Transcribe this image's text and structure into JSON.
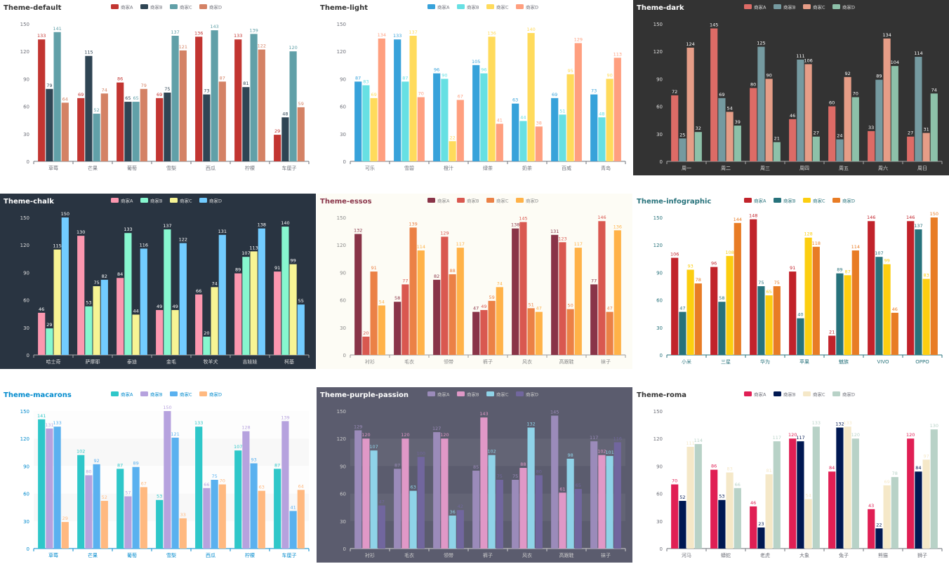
{
  "chart_data": [
    {
      "type": "bar",
      "title": "Theme-default",
      "background": "#ffffff",
      "title_color": "#333333",
      "axis_color": "#6e7079",
      "text_color": "#6e7079",
      "colors": [
        "#c23531",
        "#2f4554",
        "#61a0a8",
        "#d48265"
      ],
      "label_mode": "series",
      "categories": [
        "草莓",
        "芒果",
        "葡萄",
        "雪梨",
        "西瓜",
        "柠檬",
        "车厘子"
      ],
      "yticks": [
        "0",
        "30",
        "60",
        "90",
        "120",
        "150"
      ],
      "ylim": [
        0,
        150
      ],
      "series": [
        {
          "name": "商家A",
          "values": [
            133,
            69,
            86,
            69,
            136,
            133,
            29
          ]
        },
        {
          "name": "商家B",
          "values": [
            79,
            115,
            65,
            75,
            73,
            81,
            48
          ]
        },
        {
          "name": "商家C",
          "values": [
            141,
            52,
            65,
            137,
            143,
            139,
            120
          ]
        },
        {
          "name": "商家D",
          "values": [
            64,
            74,
            79,
            121,
            87,
            122,
            59
          ]
        }
      ]
    },
    {
      "type": "bar",
      "title": "Theme-light",
      "background": "#ffffff",
      "title_color": "#333333",
      "axis_color": "#6e7079",
      "text_color": "#6e7079",
      "colors": [
        "#37a2da",
        "#67e0e3",
        "#ffdb5c",
        "#ff9f7f"
      ],
      "label_mode": "series",
      "categories": [
        "可乐",
        "雪碧",
        "橙汁",
        "绿茶",
        "奶茶",
        "百威",
        "青岛"
      ],
      "yticks": [
        "0",
        "30",
        "60",
        "90",
        "120",
        "150"
      ],
      "ylim": [
        0,
        150
      ],
      "series": [
        {
          "name": "商家A",
          "values": [
            87,
            133,
            96,
            105,
            63,
            69,
            73
          ]
        },
        {
          "name": "商家B",
          "values": [
            83,
            87,
            90,
            96,
            44,
            51,
            48
          ]
        },
        {
          "name": "商家C",
          "values": [
            69,
            137,
            22,
            136,
            140,
            95,
            90
          ]
        },
        {
          "name": "商家D",
          "values": [
            134,
            70,
            67,
            41,
            38,
            129,
            113
          ]
        }
      ]
    },
    {
      "type": "bar",
      "title": "Theme-dark",
      "background": "#333333",
      "title_color": "#ffffff",
      "axis_color": "#aaaaaa",
      "text_color": "#dddddd",
      "colors": [
        "#dd6b66",
        "#759aa0",
        "#e69d87",
        "#8dc1a9"
      ],
      "label_mode": "white",
      "categories": [
        "周一",
        "周二",
        "周三",
        "周四",
        "周五",
        "周六",
        "周日"
      ],
      "yticks": [
        "0",
        "30",
        "60",
        "90",
        "120",
        "150"
      ],
      "ylim": [
        0,
        150
      ],
      "series": [
        {
          "name": "商家A",
          "values": [
            72,
            145,
            80,
            46,
            60,
            33,
            27
          ]
        },
        {
          "name": "商家B",
          "values": [
            25,
            69,
            125,
            111,
            24,
            89,
            114
          ]
        },
        {
          "name": "商家C",
          "values": [
            124,
            54,
            90,
            106,
            92,
            134,
            31
          ]
        },
        {
          "name": "商家D",
          "values": [
            32,
            39,
            21,
            27,
            70,
            104,
            74
          ]
        }
      ]
    },
    {
      "type": "bar",
      "title": "Theme-chalk",
      "background": "#293441",
      "title_color": "#ffffff",
      "axis_color": "#aaaaaa",
      "text_color": "#dddddd",
      "colors": [
        "#fc97af",
        "#87f7cf",
        "#f7f494",
        "#72ccff"
      ],
      "label_mode": "white",
      "categories": [
        "哈士奇",
        "萨摩耶",
        "泰迪",
        "金毛",
        "牧羊犬",
        "吉娃娃",
        "柯基"
      ],
      "yticks": [
        "0",
        "30",
        "60",
        "90",
        "120",
        "150"
      ],
      "ylim": [
        0,
        150
      ],
      "series": [
        {
          "name": "商家A",
          "values": [
            46,
            130,
            84,
            49,
            66,
            89,
            91
          ]
        },
        {
          "name": "商家B",
          "values": [
            29,
            53,
            133,
            137,
            20,
            107,
            140
          ]
        },
        {
          "name": "商家C",
          "values": [
            115,
            75,
            44,
            49,
            74,
            113,
            99
          ]
        },
        {
          "name": "商家D",
          "values": [
            150,
            82,
            116,
            122,
            131,
            138,
            55
          ]
        }
      ]
    },
    {
      "type": "bar",
      "title": "Theme-essos",
      "background": "#fdfcf5",
      "title_color": "#893448",
      "axis_color": "#999999",
      "text_color": "#888888",
      "colors": [
        "#893448",
        "#d95850",
        "#eb8146",
        "#ffb248"
      ],
      "label_mode": "series",
      "categories": [
        "衬衫",
        "毛衣",
        "领带",
        "裤子",
        "风衣",
        "高跟鞋",
        "袜子"
      ],
      "yticks": [
        "0",
        "30",
        "60",
        "90",
        "120",
        "150"
      ],
      "ylim": [
        0,
        150
      ],
      "series": [
        {
          "name": "商家A",
          "values": [
            132,
            58,
            82,
            47,
            138,
            131,
            77
          ]
        },
        {
          "name": "商家B",
          "values": [
            20,
            77,
            129,
            49,
            145,
            123,
            146
          ]
        },
        {
          "name": "商家C",
          "values": [
            91,
            139,
            88,
            59,
            51,
            50,
            47
          ]
        },
        {
          "name": "商家D",
          "values": [
            54,
            114,
            117,
            74,
            47,
            117,
            136
          ]
        }
      ]
    },
    {
      "type": "bar",
      "title": "Theme-infographic",
      "background": "#ffffff",
      "title_color": "#27727b",
      "axis_color": "#27727b",
      "text_color": "#27727b",
      "colors": [
        "#c1232b",
        "#27727b",
        "#fcce10",
        "#e87c25"
      ],
      "label_mode": "series",
      "categories": [
        "小米",
        "三星",
        "华为",
        "苹果",
        "魅族",
        "VIVO",
        "OPPO"
      ],
      "yticks": [
        "0",
        "30",
        "60",
        "90",
        "120",
        "150"
      ],
      "ylim": [
        0,
        150
      ],
      "series": [
        {
          "name": "商家A",
          "values": [
            106,
            96,
            148,
            91,
            21,
            146,
            146
          ]
        },
        {
          "name": "商家B",
          "values": [
            47,
            58,
            75,
            40,
            89,
            107,
            137
          ]
        },
        {
          "name": "商家C",
          "values": [
            93,
            108,
            65,
            128,
            87,
            99,
            83
          ]
        },
        {
          "name": "商家D",
          "values": [
            78,
            144,
            75,
            118,
            114,
            46,
            150
          ]
        }
      ]
    },
    {
      "type": "bar",
      "title": "Theme-macarons",
      "background": "#ffffff",
      "title_color": "#008acd",
      "axis_color": "#008acd",
      "text_color": "#008acd",
      "colors": [
        "#2ec7c9",
        "#b6a2de",
        "#5ab1ef",
        "#ffb980"
      ],
      "label_mode": "series",
      "split_area": true,
      "categories": [
        "草莓",
        "芒果",
        "葡萄",
        "雪梨",
        "西瓜",
        "柠檬",
        "车厘子"
      ],
      "yticks": [
        "0",
        "30",
        "60",
        "90",
        "120",
        "150"
      ],
      "ylim": [
        0,
        150
      ],
      "series": [
        {
          "name": "商家A",
          "values": [
            141,
            102,
            87,
            53,
            133,
            107,
            87
          ]
        },
        {
          "name": "商家B",
          "values": [
            131,
            80,
            57,
            150,
            66,
            128,
            139
          ]
        },
        {
          "name": "商家C",
          "values": [
            133,
            92,
            89,
            121,
            75,
            93,
            41
          ]
        },
        {
          "name": "商家D",
          "values": [
            29,
            52,
            67,
            33,
            70,
            63,
            64
          ]
        }
      ]
    },
    {
      "type": "bar",
      "title": "Theme-purple-passion",
      "background": "#5b5c6e",
      "title_color": "#ffffff",
      "axis_color": "#cccccc",
      "text_color": "#cccccc",
      "colors": [
        "#9b8bba",
        "#e098c7",
        "#8fd3e8",
        "#71669e"
      ],
      "label_mode": "series",
      "split_area_dark": true,
      "categories": [
        "衬衫",
        "毛衣",
        "领带",
        "裤子",
        "风衣",
        "高跟鞋",
        "袜子"
      ],
      "yticks": [
        "0",
        "30",
        "60",
        "90",
        "120",
        "150"
      ],
      "ylim": [
        0,
        150
      ],
      "series": [
        {
          "name": "商家A",
          "values": [
            129,
            87,
            127,
            85,
            75,
            145,
            117
          ]
        },
        {
          "name": "商家B",
          "values": [
            120,
            120,
            120,
            143,
            88,
            61,
            102
          ]
        },
        {
          "name": "商家C",
          "values": [
            107,
            63,
            36,
            102,
            132,
            98,
            101
          ]
        },
        {
          "name": "商家D",
          "values": [
            47,
            100,
            42,
            75,
            80,
            65,
            116
          ]
        }
      ]
    },
    {
      "type": "bar",
      "title": "Theme-roma",
      "background": "#ffffff",
      "title_color": "#333333",
      "axis_color": "#6e7079",
      "text_color": "#6e7079",
      "colors": [
        "#e01f54",
        "#001852",
        "#f5e8c8",
        "#b8d2c7"
      ],
      "label_mode": "series",
      "categories": [
        "河马",
        "蟒蛇",
        "老虎",
        "大象",
        "兔子",
        "熊猫",
        "狮子"
      ],
      "yticks": [
        "0",
        "30",
        "60",
        "90",
        "120",
        "150"
      ],
      "ylim": [
        0,
        150
      ],
      "series": [
        {
          "name": "商家A",
          "values": [
            70,
            86,
            46,
            120,
            84,
            43,
            120
          ]
        },
        {
          "name": "商家B",
          "values": [
            52,
            53,
            23,
            117,
            132,
            22,
            84
          ]
        },
        {
          "name": "商家C",
          "values": [
            111,
            83,
            81,
            54,
            133,
            69,
            97
          ]
        },
        {
          "name": "商家D",
          "values": [
            114,
            66,
            117,
            133,
            120,
            78,
            130
          ]
        }
      ]
    }
  ]
}
